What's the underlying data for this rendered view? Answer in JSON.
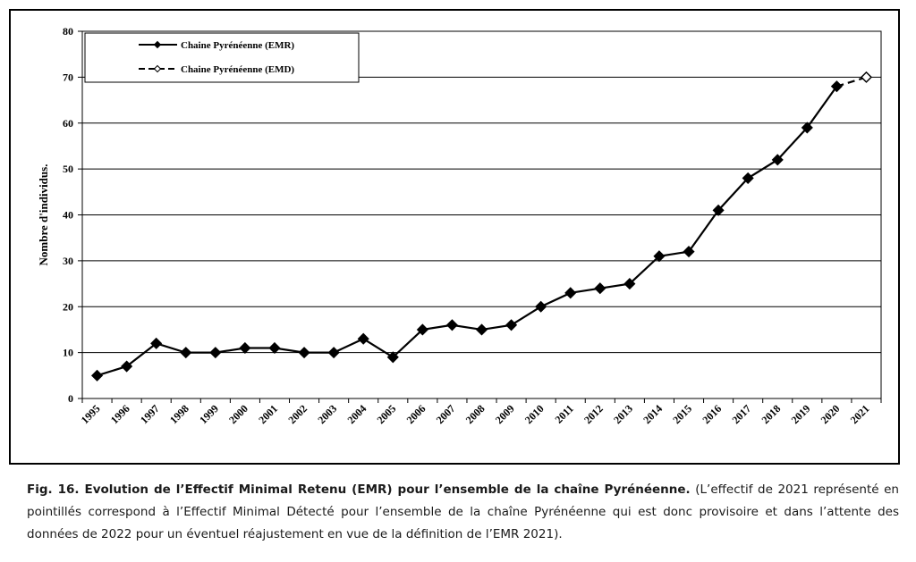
{
  "chart_data": {
    "type": "line",
    "ylabel": "Nombre d'individus.",
    "ylim": [
      0,
      80
    ],
    "yticks": [
      "0",
      "10",
      "20",
      "30",
      "40",
      "50",
      "60",
      "70",
      "80"
    ],
    "categories": [
      "1995",
      "1996",
      "1997",
      "1998",
      "1999",
      "2000",
      "2001",
      "2002",
      "2003",
      "2004",
      "2005",
      "2006",
      "2007",
      "2008",
      "2009",
      "2010",
      "2011",
      "2012",
      "2013",
      "2014",
      "2015",
      "2016",
      "2017",
      "2018",
      "2019",
      "2020",
      "2021"
    ],
    "grid": true,
    "legend_position": "top-left",
    "series": [
      {
        "name": "Chaine Pyrénéenne (EMR)",
        "style": "solid",
        "marker": "diamond-filled",
        "color": "#000000",
        "x": [
          "1995",
          "1996",
          "1997",
          "1998",
          "1999",
          "2000",
          "2001",
          "2002",
          "2003",
          "2004",
          "2005",
          "2006",
          "2007",
          "2008",
          "2009",
          "2010",
          "2011",
          "2012",
          "2013",
          "2014",
          "2015",
          "2016",
          "2017",
          "2018",
          "2019",
          "2020"
        ],
        "values": [
          5,
          7,
          12,
          10,
          10,
          11,
          11,
          10,
          10,
          13,
          9,
          15,
          16,
          15,
          16,
          20,
          23,
          24,
          25,
          31,
          32,
          41,
          48,
          52,
          59,
          68
        ]
      },
      {
        "name": "Chaine Pyrénéenne (EMD)",
        "style": "dashed",
        "marker": "diamond-open",
        "color": "#000000",
        "x": [
          "2020",
          "2021"
        ],
        "values": [
          68,
          70
        ]
      }
    ]
  },
  "caption": {
    "figure_label": "Fig. 16. Evolution de l’Effectif Minimal Retenu (EMR) pour l’ensemble de la chaîne Pyrénéenne.",
    "note": "(L’effectif de 2021 représenté en pointillés correspond à l’Effectif Minimal Détecté pour l’ensemble de la chaîne Pyrénéenne qui est donc provisoire et dans l’attente des données de 2022 pour un éventuel réajustement en vue de la définition de l’EMR 2021)."
  }
}
